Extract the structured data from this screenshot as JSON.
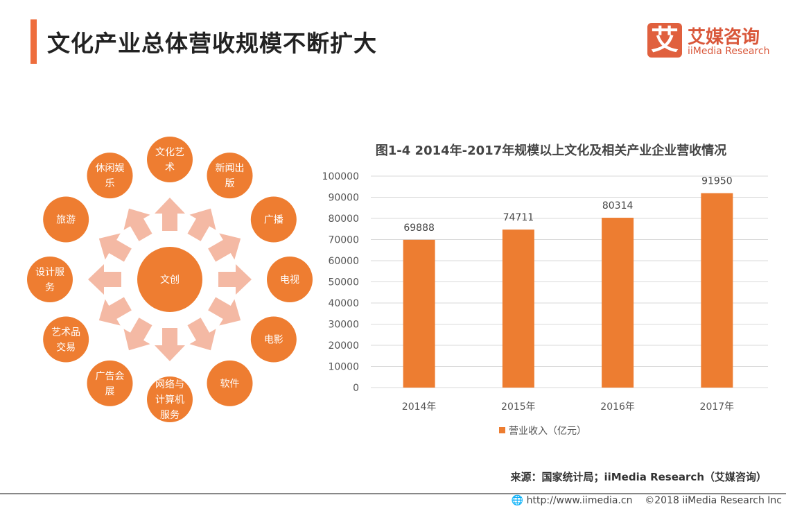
{
  "header": {
    "title": "文化产业总体营收规模不断扩大"
  },
  "logo": {
    "mark": "艾",
    "cn": "艾媒咨询",
    "en": "iiMedia Research"
  },
  "diagram": {
    "center": "文创",
    "nodes": [
      [
        "文化艺",
        "术"
      ],
      [
        "新闻出",
        "版"
      ],
      [
        "广播"
      ],
      [
        "电视"
      ],
      [
        "电影"
      ],
      [
        "软件"
      ],
      [
        "网络与",
        "计算机",
        "服务"
      ],
      [
        "广告会",
        "展"
      ],
      [
        "艺术品",
        "交易"
      ],
      [
        "设计服",
        "务"
      ],
      [
        "旅游"
      ],
      [
        "休闲娱",
        "乐"
      ]
    ],
    "colors": {
      "circle": "#ee7d31",
      "arrow": "#f4b9a4"
    }
  },
  "chart_data": {
    "type": "bar",
    "title": "图1-4 2014年-2017年规模以上文化及相关产业企业营收情况",
    "categories": [
      "2014年",
      "2015年",
      "2016年",
      "2017年"
    ],
    "series": [
      {
        "name": "营业收入（亿元）",
        "values": [
          69888,
          74711,
          80314,
          91950
        ],
        "color": "#ed7d31"
      }
    ],
    "ylim": [
      0,
      100000
    ],
    "yticks": [
      0,
      10000,
      20000,
      30000,
      40000,
      50000,
      60000,
      70000,
      80000,
      90000,
      100000
    ],
    "grid": true,
    "legend": "bottom"
  },
  "source": "来源：国家统计局；iiMedia Research（艾媒咨询）",
  "footer": {
    "url": "http://www.iimedia.cn",
    "copyright": "©2018  iiMedia Research  Inc"
  }
}
